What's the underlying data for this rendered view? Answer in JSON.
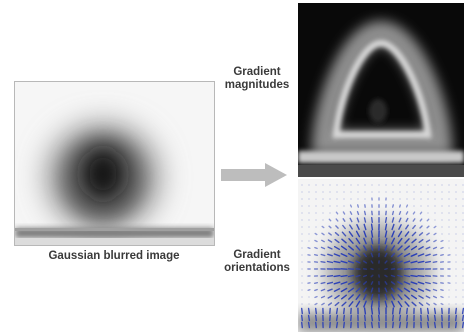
{
  "diagram": {
    "input_caption": "Gaussian blurred image",
    "magnitude_label": [
      "Gradient",
      "magnitudes"
    ],
    "orientation_label": [
      "Gradient",
      "orientations"
    ],
    "arrow_icon": "arrow-right-icon",
    "colors": {
      "arrow": "#bdbdbd",
      "vectors": "#2a3fb8",
      "ink": "#111111"
    }
  }
}
